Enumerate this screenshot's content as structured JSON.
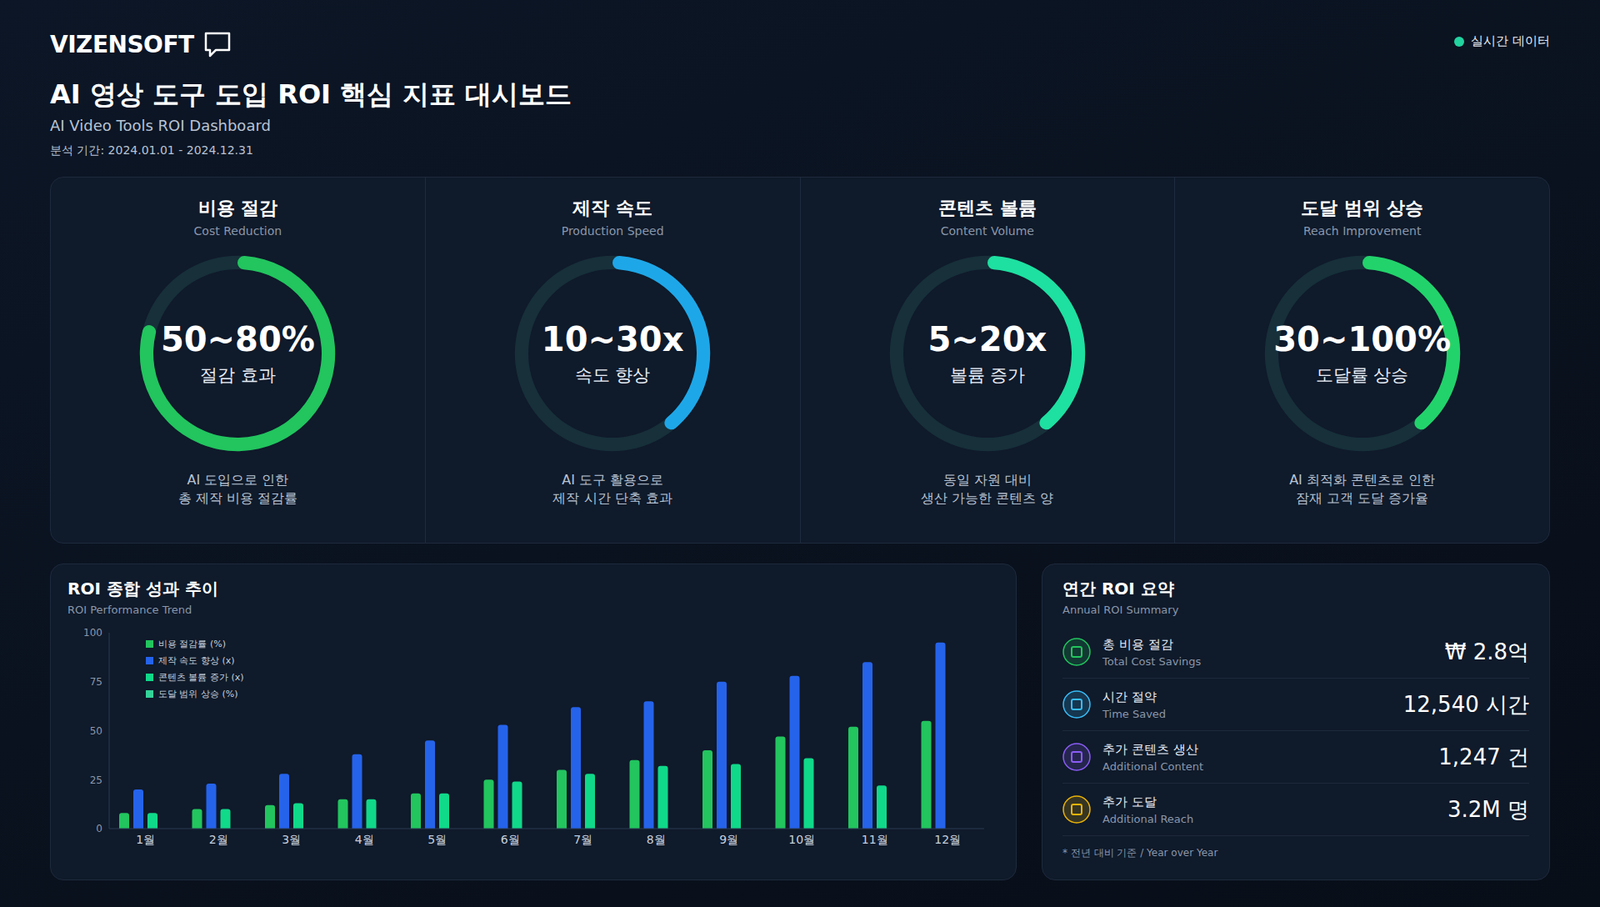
{
  "header": {
    "logo": "VIZENSOFT",
    "title": "AI 영상 도구 도입 ROI 핵심 지표 대시보드",
    "subtitle": "AI Video Tools ROI Dashboard",
    "period": "분석 기간: 2024.01.01 - 2024.12.31",
    "status": "실시간 데이터"
  },
  "kpis": [
    {
      "title": "비용 절감",
      "title_en": "Cost Reduction",
      "value": "50~80%",
      "caption": "절감 효과",
      "description": [
        "AI 도입으로 인한",
        "총 제작 비용 절감률"
      ],
      "gauge": 80,
      "gauge_lim": [
        0,
        100
      ],
      "color": "#22c55e"
    },
    {
      "title": "제작 속도",
      "title_en": "Production Speed",
      "value": "10~30x",
      "caption": "속도 향상",
      "description": [
        "AI 도구 활용으로",
        "제작 시간 단축 효과"
      ],
      "gauge": 40,
      "gauge_lim": [
        0,
        100
      ],
      "color": "#1ea7e8"
    },
    {
      "title": "콘텐츠 볼륨",
      "title_en": "Content Volume",
      "value": "5~20x",
      "caption": "볼륨 증가",
      "description": [
        "동일 자원 대비",
        "생산 가능한 콘텐츠 양"
      ],
      "gauge": 40,
      "gauge_lim": [
        0,
        100
      ],
      "color": "#1ee0a0"
    },
    {
      "title": "도달 범위 상승",
      "title_en": "Reach Improvement",
      "value": "30~100%",
      "caption": "도달률 상승",
      "description": [
        "AI 최적화 콘텐츠로 인한",
        "잠재 고객 도달 증가율"
      ],
      "gauge": 40,
      "gauge_lim": [
        0,
        100
      ],
      "color": "#22d36b"
    }
  ],
  "chart_data": {
    "type": "bar",
    "title": "ROI 종합 성과 추이",
    "subtitle": "ROI Performance Trend",
    "categories": [
      "1월",
      "2월",
      "3월",
      "4월",
      "5월",
      "6월",
      "7월",
      "8월",
      "9월",
      "10월",
      "11월",
      "12월"
    ],
    "series": [
      {
        "name": "비용 절감률 (%)",
        "color": "#22c55e",
        "values": [
          8,
          10,
          12,
          15,
          18,
          25,
          30,
          35,
          40,
          47,
          52,
          55
        ]
      },
      {
        "name": "제작 속도 향상 (x)",
        "color": "#2563eb",
        "values": [
          20,
          23,
          28,
          38,
          45,
          53,
          62,
          65,
          75,
          78,
          85,
          95
        ]
      },
      {
        "name": "콘텐츠 볼륨 증가 (x)",
        "color": "#10d98a",
        "values": [
          8,
          10,
          13,
          15,
          18,
          24,
          28,
          32,
          33,
          36,
          22,
          null
        ]
      },
      {
        "name": "도달 범위 상승 (%)",
        "color": "#34d399",
        "values": [
          null,
          null,
          null,
          null,
          null,
          null,
          null,
          null,
          null,
          null,
          null,
          null
        ]
      }
    ],
    "ylim": [
      0,
      100
    ],
    "yticks": [
      0,
      25,
      50,
      75,
      100
    ],
    "grid": false,
    "legend": "top-left"
  },
  "summary": {
    "title": "연간 ROI 요약",
    "title_en": "Annual ROI Summary",
    "items": [
      {
        "label": "총 비용 절감",
        "label_en": "Total Cost Savings",
        "value": "₩ 2.8억"
      },
      {
        "label": "시간 절약",
        "label_en": "Time Saved",
        "value": "12,540 시간"
      },
      {
        "label": "추가 콘텐츠 생산",
        "label_en": "Additional Content",
        "value": "1,247 건"
      },
      {
        "label": "추가 도달",
        "label_en": "Additional Reach",
        "value": "3.2M 명"
      }
    ],
    "footnote": "* 전년 대비 기준 / Year over Year"
  }
}
